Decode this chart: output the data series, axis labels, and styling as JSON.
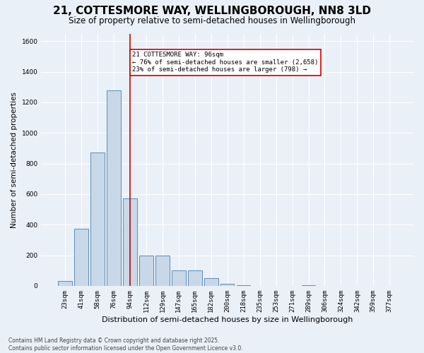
{
  "title": "21, COTTESMORE WAY, WELLINGBOROUGH, NN8 3LD",
  "subtitle": "Size of property relative to semi-detached houses in Wellingborough",
  "xlabel": "Distribution of semi-detached houses by size in Wellingborough",
  "ylabel": "Number of semi-detached properties",
  "categories": [
    "23sqm",
    "41sqm",
    "58sqm",
    "76sqm",
    "94sqm",
    "112sqm",
    "129sqm",
    "147sqm",
    "165sqm",
    "182sqm",
    "200sqm",
    "218sqm",
    "235sqm",
    "253sqm",
    "271sqm",
    "289sqm",
    "306sqm",
    "324sqm",
    "342sqm",
    "359sqm",
    "377sqm"
  ],
  "values": [
    30,
    375,
    870,
    1280,
    570,
    200,
    200,
    100,
    100,
    50,
    15,
    5,
    0,
    0,
    0,
    5,
    0,
    0,
    0,
    0,
    0
  ],
  "bar_color": "#c8d8e8",
  "bar_edge_color": "#5b8db8",
  "annotation_text": "21 COTTESMORE WAY: 96sqm\n← 76% of semi-detached houses are smaller (2,658)\n23% of semi-detached houses are larger (798) →",
  "annotation_box_color": "#ffffff",
  "annotation_box_edge_color": "#cc0000",
  "red_line_color": "#cc0000",
  "ylim": [
    0,
    1650
  ],
  "yticks": [
    0,
    200,
    400,
    600,
    800,
    1000,
    1200,
    1400,
    1600
  ],
  "background_color": "#eaf0f8",
  "grid_color": "#ffffff",
  "footer_text": "Contains HM Land Registry data © Crown copyright and database right 2025.\nContains public sector information licensed under the Open Government Licence v3.0.",
  "title_fontsize": 11,
  "subtitle_fontsize": 8.5,
  "xlabel_fontsize": 8,
  "ylabel_fontsize": 7.5,
  "tick_fontsize": 6.5,
  "annotation_fontsize": 6.5,
  "footer_fontsize": 5.5
}
